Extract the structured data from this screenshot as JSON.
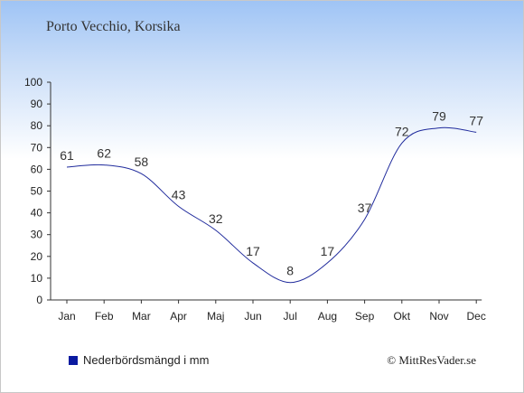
{
  "title": "Porto Vecchio, Korsika",
  "legend_label": "Nederbördsmängd i mm",
  "copyright": "© MittResVader.se",
  "colors": {
    "line": "#1f2a9c",
    "text": "#333333",
    "legend_swatch": "#0a1aa0"
  },
  "chart_data": {
    "type": "line",
    "categories": [
      "Jan",
      "Feb",
      "Mar",
      "Apr",
      "Maj",
      "Jun",
      "Jul",
      "Aug",
      "Sep",
      "Okt",
      "Nov",
      "Dec"
    ],
    "series": [
      {
        "name": "Nederbördsmängd i mm",
        "values": [
          61,
          62,
          58,
          43,
          32,
          17,
          8,
          17,
          37,
          72,
          79,
          77
        ]
      }
    ],
    "ylim": [
      0,
      100
    ],
    "yticks": [
      0,
      10,
      20,
      30,
      40,
      50,
      60,
      70,
      80,
      90,
      100
    ],
    "grid": false,
    "legend": "bottom-left"
  }
}
